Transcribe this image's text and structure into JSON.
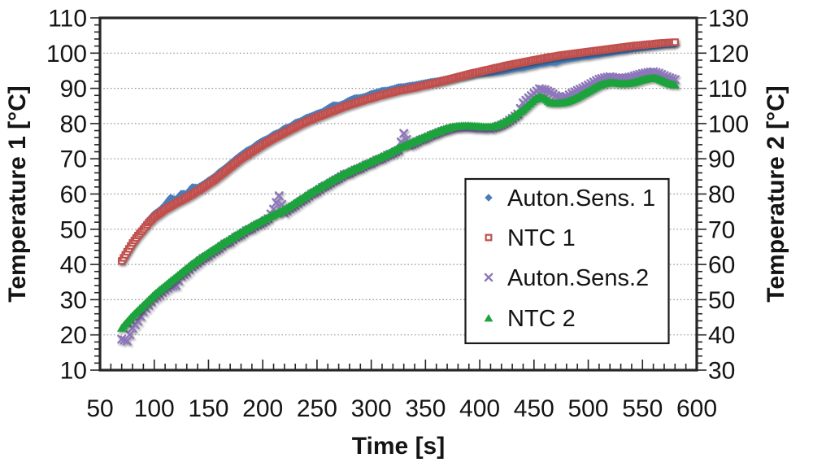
{
  "chart_data": {
    "type": "scatter",
    "title": "",
    "xlabel": "Time [s]",
    "ylabel_left": "Temperature 1 [°C]",
    "ylabel_right": "Temperature 2 [°C]",
    "xlim": [
      50,
      600
    ],
    "ylim_left": [
      10,
      110
    ],
    "ylim_right": [
      30,
      130
    ],
    "x_ticks": [
      50,
      100,
      150,
      200,
      250,
      300,
      350,
      400,
      450,
      500,
      550,
      600
    ],
    "x_minor_step": 10,
    "y_ticks_left": [
      10,
      20,
      30,
      40,
      50,
      60,
      70,
      80,
      90,
      100,
      110
    ],
    "y_ticks_right": [
      30,
      40,
      50,
      60,
      70,
      80,
      90,
      100,
      110,
      120,
      130
    ],
    "y_minor_step": 2,
    "grid": "horizontal-dotted",
    "legend_position": "inside-right",
    "style": {
      "frame_color": "#262626",
      "grid_color": "#8f8f8f",
      "tick_color": "#262626",
      "background": "#ffffff",
      "legend_border": "#1a1a1a"
    },
    "t": [
      70,
      75,
      80,
      85,
      90,
      95,
      100,
      105,
      110,
      115,
      120,
      125,
      130,
      135,
      140,
      145,
      150,
      155,
      160,
      165,
      170,
      175,
      180,
      185,
      190,
      195,
      200,
      205,
      210,
      215,
      220,
      225,
      230,
      235,
      240,
      245,
      250,
      255,
      260,
      265,
      270,
      275,
      280,
      285,
      290,
      295,
      300,
      305,
      310,
      315,
      320,
      325,
      330,
      335,
      340,
      345,
      350,
      355,
      360,
      365,
      370,
      375,
      380,
      385,
      390,
      395,
      400,
      405,
      410,
      415,
      420,
      425,
      430,
      435,
      440,
      445,
      450,
      455,
      460,
      465,
      470,
      475,
      480,
      485,
      490,
      495,
      500,
      505,
      510,
      515,
      520,
      525,
      530,
      535,
      540,
      545,
      550,
      555,
      560,
      565,
      570,
      575,
      580
    ],
    "series": [
      {
        "name": "Auton.Sens. 1",
        "marker": "diamond",
        "color": "#4b7cba",
        "axis": "left",
        "values": [
          41.2,
          43.9,
          46.3,
          48.6,
          50.5,
          52.6,
          54.3,
          55.4,
          56.9,
          58.9,
          58.3,
          60.1,
          60.0,
          61.9,
          61.8,
          62.7,
          63.8,
          64.8,
          66.2,
          67.3,
          68.6,
          69.9,
          71.1,
          72.2,
          73.0,
          74.2,
          75.1,
          75.8,
          76.9,
          77.5,
          78.6,
          79.1,
          80.2,
          80.7,
          81.6,
          82.1,
          82.8,
          83.3,
          84.3,
          85.2,
          85.1,
          85.7,
          86.6,
          87.2,
          87.3,
          87.7,
          88.4,
          88.8,
          89.3,
          89.4,
          89.8,
          90.3,
          90.4,
          90.7,
          90.9,
          91.2,
          91.5,
          91.8,
          92.0,
          92.3,
          92.6,
          92.9,
          93.3,
          93.5,
          93.8,
          94.1,
          94.3,
          94.4,
          94.5,
          94.7,
          94.9,
          95.2,
          95.5,
          95.8,
          95.9,
          96.3,
          96.6,
          97.0,
          97.2,
          97.5,
          97.4,
          98.0,
          98.3,
          98.6,
          98.8,
          99.1,
          99.2,
          99.5,
          99.7,
          100.0,
          100.2,
          100.5,
          100.7,
          100.9,
          101.2,
          101.4,
          101.6,
          101.8,
          102.0,
          102.2,
          102.4,
          102.5,
          102.6
        ]
      },
      {
        "name": "NTC 1",
        "marker": "open-square",
        "color": "#c0504d",
        "axis": "left",
        "values": [
          41.0,
          43.6,
          46.1,
          48.2,
          50.0,
          51.9,
          53.4,
          54.5,
          55.6,
          56.5,
          57.4,
          58.2,
          59.0,
          59.9,
          60.9,
          61.8,
          62.9,
          63.9,
          65.1,
          66.3,
          67.6,
          68.8,
          70.0,
          71.0,
          72.0,
          73.0,
          74.0,
          74.9,
          75.8,
          76.6,
          77.4,
          78.2,
          79.0,
          79.8,
          80.5,
          81.2,
          81.8,
          82.4,
          83.0,
          83.6,
          84.2,
          84.8,
          85.3,
          85.8,
          86.3,
          86.8,
          87.2,
          87.7,
          88.1,
          88.5,
          88.9,
          89.3,
          89.6,
          89.9,
          90.2,
          90.6,
          90.9,
          91.3,
          91.6,
          92.0,
          92.4,
          92.8,
          93.2,
          93.6,
          94.0,
          94.4,
          94.7,
          95.1,
          95.4,
          95.8,
          96.1,
          96.5,
          96.8,
          97.1,
          97.4,
          97.7,
          98.0,
          98.3,
          98.6,
          98.9,
          99.1,
          99.4,
          99.6,
          99.8,
          100.0,
          100.2,
          100.4,
          100.6,
          100.8,
          101.0,
          101.2,
          101.4,
          101.6,
          101.8,
          102.0,
          102.2,
          102.3,
          102.5,
          102.6,
          102.8,
          102.9,
          103.0,
          103.1
        ]
      },
      {
        "name": "Auton.Sens.2",
        "marker": "x",
        "color": "#8d76bb",
        "axis": "right",
        "values": [
          38.8,
          38.3,
          41.9,
          43.9,
          46.6,
          48.4,
          50.3,
          51.4,
          52.7,
          53.8,
          54.1,
          56.6,
          57.7,
          59.3,
          60.4,
          61.7,
          62.4,
          63.6,
          64.5,
          65.8,
          66.4,
          67.7,
          68.4,
          69.6,
          70.2,
          71.2,
          71.9,
          73.0,
          75.7,
          79.5,
          74.6,
          75.8,
          76.7,
          77.9,
          78.8,
          80.0,
          80.7,
          81.9,
          82.6,
          83.6,
          84.4,
          85.5,
          85.9,
          86.8,
          87.3,
          88.2,
          88.7,
          89.6,
          90.1,
          91.0,
          91.6,
          92.4,
          97.2,
          93.8,
          94.4,
          95.3,
          95.8,
          96.6,
          97.1,
          97.8,
          98.2,
          98.7,
          98.8,
          99.0,
          98.9,
          98.8,
          98.6,
          98.7,
          98.5,
          99.0,
          99.6,
          100.4,
          101.5,
          102.7,
          105.9,
          107.3,
          108.6,
          109.9,
          109.6,
          108.9,
          107.9,
          107.3,
          107.7,
          108.6,
          109.4,
          110.1,
          110.9,
          111.8,
          112.6,
          113.0,
          113.3,
          113.0,
          112.8,
          113.0,
          113.3,
          113.8,
          114.2,
          114.5,
          114.7,
          114.3,
          113.6,
          113.0,
          112.5
        ]
      },
      {
        "name": "NTC 2",
        "marker": "triangle",
        "color": "#1fa33c",
        "axis": "right",
        "values": [
          42.0,
          43.8,
          45.5,
          47.0,
          48.5,
          50.0,
          51.5,
          52.8,
          54.0,
          55.3,
          56.5,
          57.8,
          59.0,
          60.2,
          61.3,
          62.4,
          63.4,
          64.4,
          65.4,
          66.4,
          67.3,
          68.3,
          69.2,
          70.1,
          71.0,
          71.8,
          72.6,
          73.4,
          74.1,
          74.9,
          75.6,
          76.6,
          77.6,
          78.6,
          79.6,
          80.6,
          81.5,
          82.4,
          83.3,
          84.2,
          85.0,
          85.8,
          86.5,
          87.2,
          87.9,
          88.6,
          89.3,
          90.0,
          90.7,
          91.4,
          92.2,
          93.0,
          93.7,
          94.4,
          95.0,
          95.7,
          96.3,
          97.0,
          97.6,
          98.2,
          98.7,
          99.1,
          99.3,
          99.4,
          99.4,
          99.3,
          99.2,
          99.1,
          99.1,
          99.4,
          100.0,
          100.8,
          101.8,
          102.9,
          104.0,
          105.4,
          106.8,
          107.6,
          107.2,
          106.0,
          105.8,
          105.9,
          106.2,
          106.8,
          107.5,
          108.4,
          109.2,
          110.1,
          110.9,
          111.4,
          111.7,
          111.6,
          111.4,
          111.4,
          111.6,
          112.0,
          112.5,
          112.8,
          113.0,
          112.7,
          112.0,
          111.4,
          111.0
        ]
      }
    ]
  }
}
